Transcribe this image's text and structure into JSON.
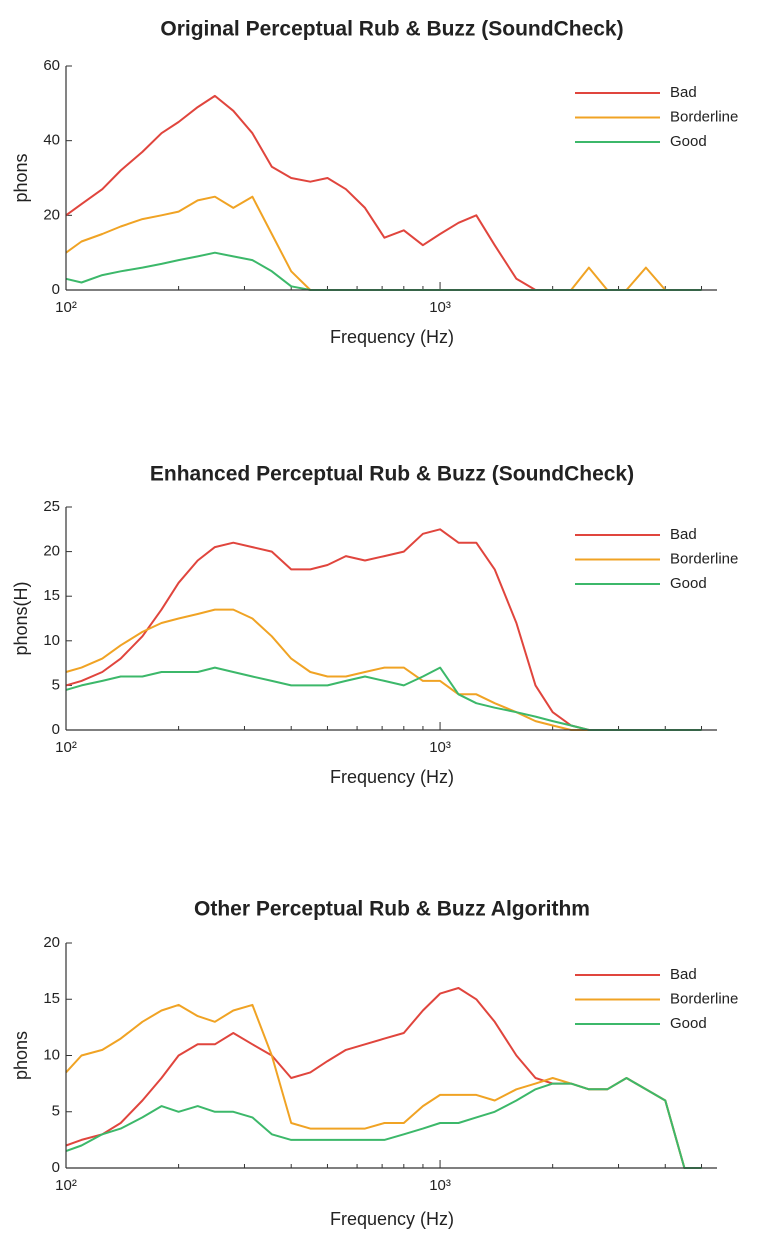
{
  "chart_data": [
    {
      "type": "line",
      "title": "Original Perceptual Rub & Buzz (SoundCheck)",
      "xlabel": "Frequency (Hz)",
      "ylabel": "phons",
      "xscale": "log",
      "xlim": [
        100,
        5500
      ],
      "xticks": [
        {
          "value": 100,
          "label": "10²"
        },
        {
          "value": 1000,
          "label": "10³"
        }
      ],
      "xminorticks": [
        200,
        300,
        400,
        500,
        600,
        700,
        800,
        900,
        2000,
        3000,
        4000,
        5000
      ],
      "ylim": [
        0,
        60
      ],
      "yticks": [
        0,
        20,
        40,
        60
      ],
      "legend": "northeast",
      "x": [
        100,
        110,
        125,
        140,
        160,
        180,
        200,
        225,
        250,
        280,
        315,
        355,
        400,
        450,
        500,
        560,
        630,
        710,
        800,
        900,
        1000,
        1120,
        1250,
        1400,
        1600,
        1800,
        2000,
        2240,
        2500,
        2800,
        3150,
        3550,
        4000,
        4500,
        5000
      ],
      "series": [
        {
          "name": "Bad",
          "color": "#e0453d",
          "values": [
            20,
            23,
            27,
            32,
            37,
            42,
            45,
            49,
            52,
            48,
            42,
            33,
            30,
            29,
            30,
            27,
            22,
            14,
            16,
            12,
            15,
            18,
            20,
            12,
            3,
            0,
            0,
            0,
            0,
            0,
            0,
            0,
            0,
            0,
            0
          ]
        },
        {
          "name": "Borderline",
          "color": "#f0a324",
          "values": [
            10,
            13,
            15,
            17,
            19,
            20,
            21,
            24,
            25,
            22,
            25,
            15,
            5,
            0,
            0,
            0,
            0,
            0,
            0,
            0,
            0,
            0,
            0,
            0,
            0,
            0,
            0,
            0,
            6,
            0,
            0,
            6,
            0,
            0,
            0
          ]
        },
        {
          "name": "Good",
          "color": "#3cb86a",
          "values": [
            3,
            2,
            4,
            5,
            6,
            7,
            8,
            9,
            10,
            9,
            8,
            5,
            1,
            0,
            0,
            0,
            0,
            0,
            0,
            0,
            0,
            0,
            0,
            0,
            0,
            0,
            0,
            0,
            0,
            0,
            0,
            0,
            0,
            0,
            0
          ]
        }
      ]
    },
    {
      "type": "line",
      "title": "Enhanced Perceptual Rub & Buzz (SoundCheck)",
      "xlabel": "Frequency (Hz)",
      "ylabel": "phons(H)",
      "xscale": "log",
      "xlim": [
        100,
        5500
      ],
      "xticks": [
        {
          "value": 100,
          "label": "10²"
        },
        {
          "value": 1000,
          "label": "10³"
        }
      ],
      "xminorticks": [
        200,
        300,
        400,
        500,
        600,
        700,
        800,
        900,
        2000,
        3000,
        4000,
        5000
      ],
      "ylim": [
        0,
        25
      ],
      "yticks": [
        0,
        5,
        10,
        15,
        20,
        25
      ],
      "legend": "northeast",
      "x": [
        100,
        110,
        125,
        140,
        160,
        180,
        200,
        225,
        250,
        280,
        315,
        355,
        400,
        450,
        500,
        560,
        630,
        710,
        800,
        900,
        1000,
        1120,
        1250,
        1400,
        1600,
        1800,
        2000,
        2240,
        2500,
        2800,
        3150,
        3550,
        4000,
        4500,
        5000
      ],
      "series": [
        {
          "name": "Bad",
          "color": "#e0453d",
          "values": [
            5,
            5.5,
            6.5,
            8,
            10.5,
            13.5,
            16.5,
            19,
            20.5,
            21,
            20.5,
            20,
            18,
            18,
            18.5,
            19.5,
            19,
            19.5,
            20,
            22,
            22.5,
            21,
            21,
            18,
            12,
            5,
            2,
            0.5,
            0,
            0,
            0,
            0,
            0,
            0,
            0
          ]
        },
        {
          "name": "Borderline",
          "color": "#f0a324",
          "values": [
            6.5,
            7,
            8,
            9.5,
            11,
            12,
            12.5,
            13,
            13.5,
            13.5,
            12.5,
            10.5,
            8,
            6.5,
            6,
            6,
            6.5,
            7,
            7,
            5.5,
            5.5,
            4,
            4,
            3,
            2,
            1,
            0.5,
            0,
            0,
            0,
            0,
            0,
            0,
            0,
            0
          ]
        },
        {
          "name": "Good",
          "color": "#3cb86a",
          "values": [
            4.5,
            5,
            5.5,
            6,
            6,
            6.5,
            6.5,
            6.5,
            7,
            6.5,
            6,
            5.5,
            5,
            5,
            5,
            5.5,
            6,
            5.5,
            5,
            6,
            7,
            4,
            3,
            2.5,
            2,
            1.5,
            1,
            0.5,
            0,
            0,
            0,
            0,
            0,
            0,
            0
          ]
        }
      ]
    },
    {
      "type": "line",
      "title": "Other Perceptual Rub & Buzz Algorithm",
      "xlabel": "Frequency (Hz)",
      "ylabel": "phons",
      "xscale": "log",
      "xlim": [
        100,
        5500
      ],
      "xticks": [
        {
          "value": 100,
          "label": "10²"
        },
        {
          "value": 1000,
          "label": "10³"
        }
      ],
      "xminorticks": [
        200,
        300,
        400,
        500,
        600,
        700,
        800,
        900,
        2000,
        3000,
        4000,
        5000
      ],
      "ylim": [
        0,
        20
      ],
      "yticks": [
        0,
        5,
        10,
        15,
        20
      ],
      "legend": "northeast",
      "x": [
        100,
        110,
        125,
        140,
        160,
        180,
        200,
        225,
        250,
        280,
        315,
        355,
        400,
        450,
        500,
        560,
        630,
        710,
        800,
        900,
        1000,
        1120,
        1250,
        1400,
        1600,
        1800,
        2000,
        2240,
        2500,
        2800,
        3150,
        3550,
        4000,
        4500,
        5000
      ],
      "series": [
        {
          "name": "Bad",
          "color": "#e0453d",
          "values": [
            2,
            2.5,
            3,
            4,
            6,
            8,
            10,
            11,
            11,
            12,
            11,
            10,
            8,
            8.5,
            9.5,
            10.5,
            11,
            11.5,
            12,
            14,
            15.5,
            16,
            15,
            13,
            10,
            8,
            7.5,
            7.5,
            7,
            7,
            8,
            7,
            6,
            0,
            0
          ]
        },
        {
          "name": "Borderline",
          "color": "#f0a324",
          "values": [
            8.5,
            10,
            10.5,
            11.5,
            13,
            14,
            14.5,
            13.5,
            13,
            14,
            14.5,
            10,
            4,
            3.5,
            3.5,
            3.5,
            3.5,
            4,
            4,
            5.5,
            6.5,
            6.5,
            6.5,
            6,
            7,
            7.5,
            8,
            7.5,
            7,
            7,
            8,
            7,
            6,
            0,
            0
          ]
        },
        {
          "name": "Good",
          "color": "#3cb86a",
          "values": [
            1.5,
            2,
            3,
            3.5,
            4.5,
            5.5,
            5,
            5.5,
            5,
            5,
            4.5,
            3,
            2.5,
            2.5,
            2.5,
            2.5,
            2.5,
            2.5,
            3,
            3.5,
            4,
            4,
            4.5,
            5,
            6,
            7,
            7.5,
            7.5,
            7,
            7,
            8,
            7,
            6,
            0,
            0
          ]
        }
      ]
    }
  ]
}
